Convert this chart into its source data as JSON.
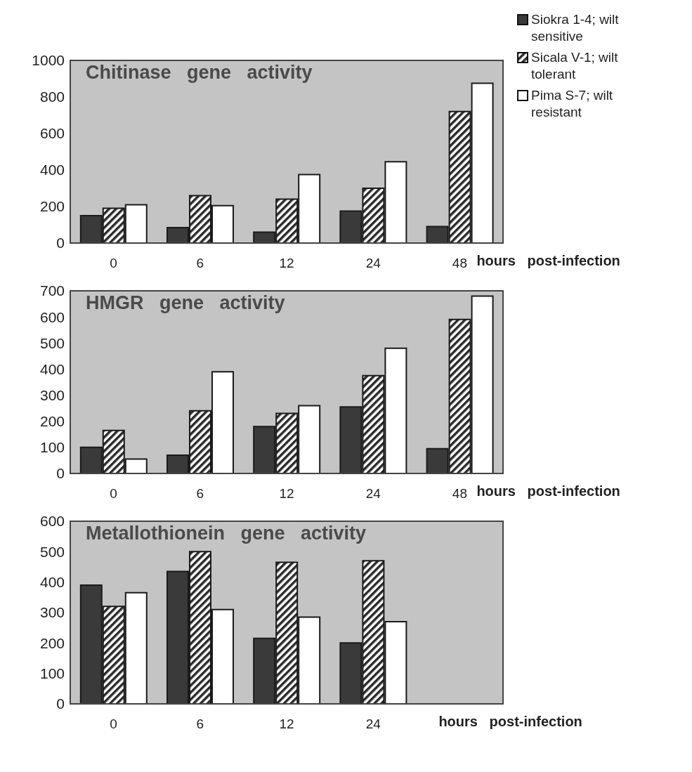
{
  "chart_data": [
    {
      "type": "bar",
      "title": "Chitinase   gene   activity",
      "xlabel": "hours   post-infection",
      "categories": [
        "0",
        "6",
        "12",
        "24",
        "48"
      ],
      "ylim": [
        0,
        1000
      ],
      "yticks": [
        0,
        200,
        400,
        600,
        800,
        1000
      ],
      "legend": "top right",
      "series": [
        {
          "name": "Siokra 1-4; wilt sensitive",
          "color": "#3a3a3a",
          "values": [
            150,
            85,
            60,
            175,
            90
          ]
        },
        {
          "name": "Sicala V-1; wilt tolerant",
          "color": "#2a2a2a",
          "values": [
            190,
            260,
            240,
            300,
            720
          ]
        },
        {
          "name": "Pima S-7; wilt resistant",
          "color": "#ffffff",
          "values": [
            210,
            205,
            375,
            445,
            875
          ]
        }
      ]
    },
    {
      "type": "bar",
      "title": "HMGR   gene   activity",
      "xlabel": "hours   post-infection",
      "categories": [
        "0",
        "6",
        "12",
        "24",
        "48"
      ],
      "ylim": [
        0,
        700
      ],
      "yticks": [
        0,
        100,
        200,
        300,
        400,
        500,
        600,
        700
      ],
      "series": [
        {
          "color": "#3a3a3a",
          "values": [
            100,
            70,
            180,
            255,
            95
          ]
        },
        {
          "color": "#2a2a2a",
          "values": [
            165,
            240,
            230,
            375,
            590
          ]
        },
        {
          "color": "#ffffff",
          "values": [
            55,
            390,
            260,
            480,
            680
          ]
        }
      ]
    },
    {
      "type": "bar",
      "title": "Metallothionein   gene   activity",
      "xlabel": "hours   post-infection",
      "categories": [
        "0",
        "6",
        "12",
        "24",
        null
      ],
      "ylim": [
        0,
        600
      ],
      "yticks": [
        0,
        100,
        200,
        300,
        400,
        500,
        600
      ],
      "series": [
        {
          "color": "#3a3a3a",
          "values": [
            390,
            435,
            215,
            200,
            null
          ]
        },
        {
          "color": "#2a2a2a",
          "values": [
            320,
            500,
            465,
            470,
            null
          ]
        },
        {
          "color": "#ffffff",
          "values": [
            365,
            310,
            285,
            270,
            null
          ]
        }
      ]
    }
  ]
}
